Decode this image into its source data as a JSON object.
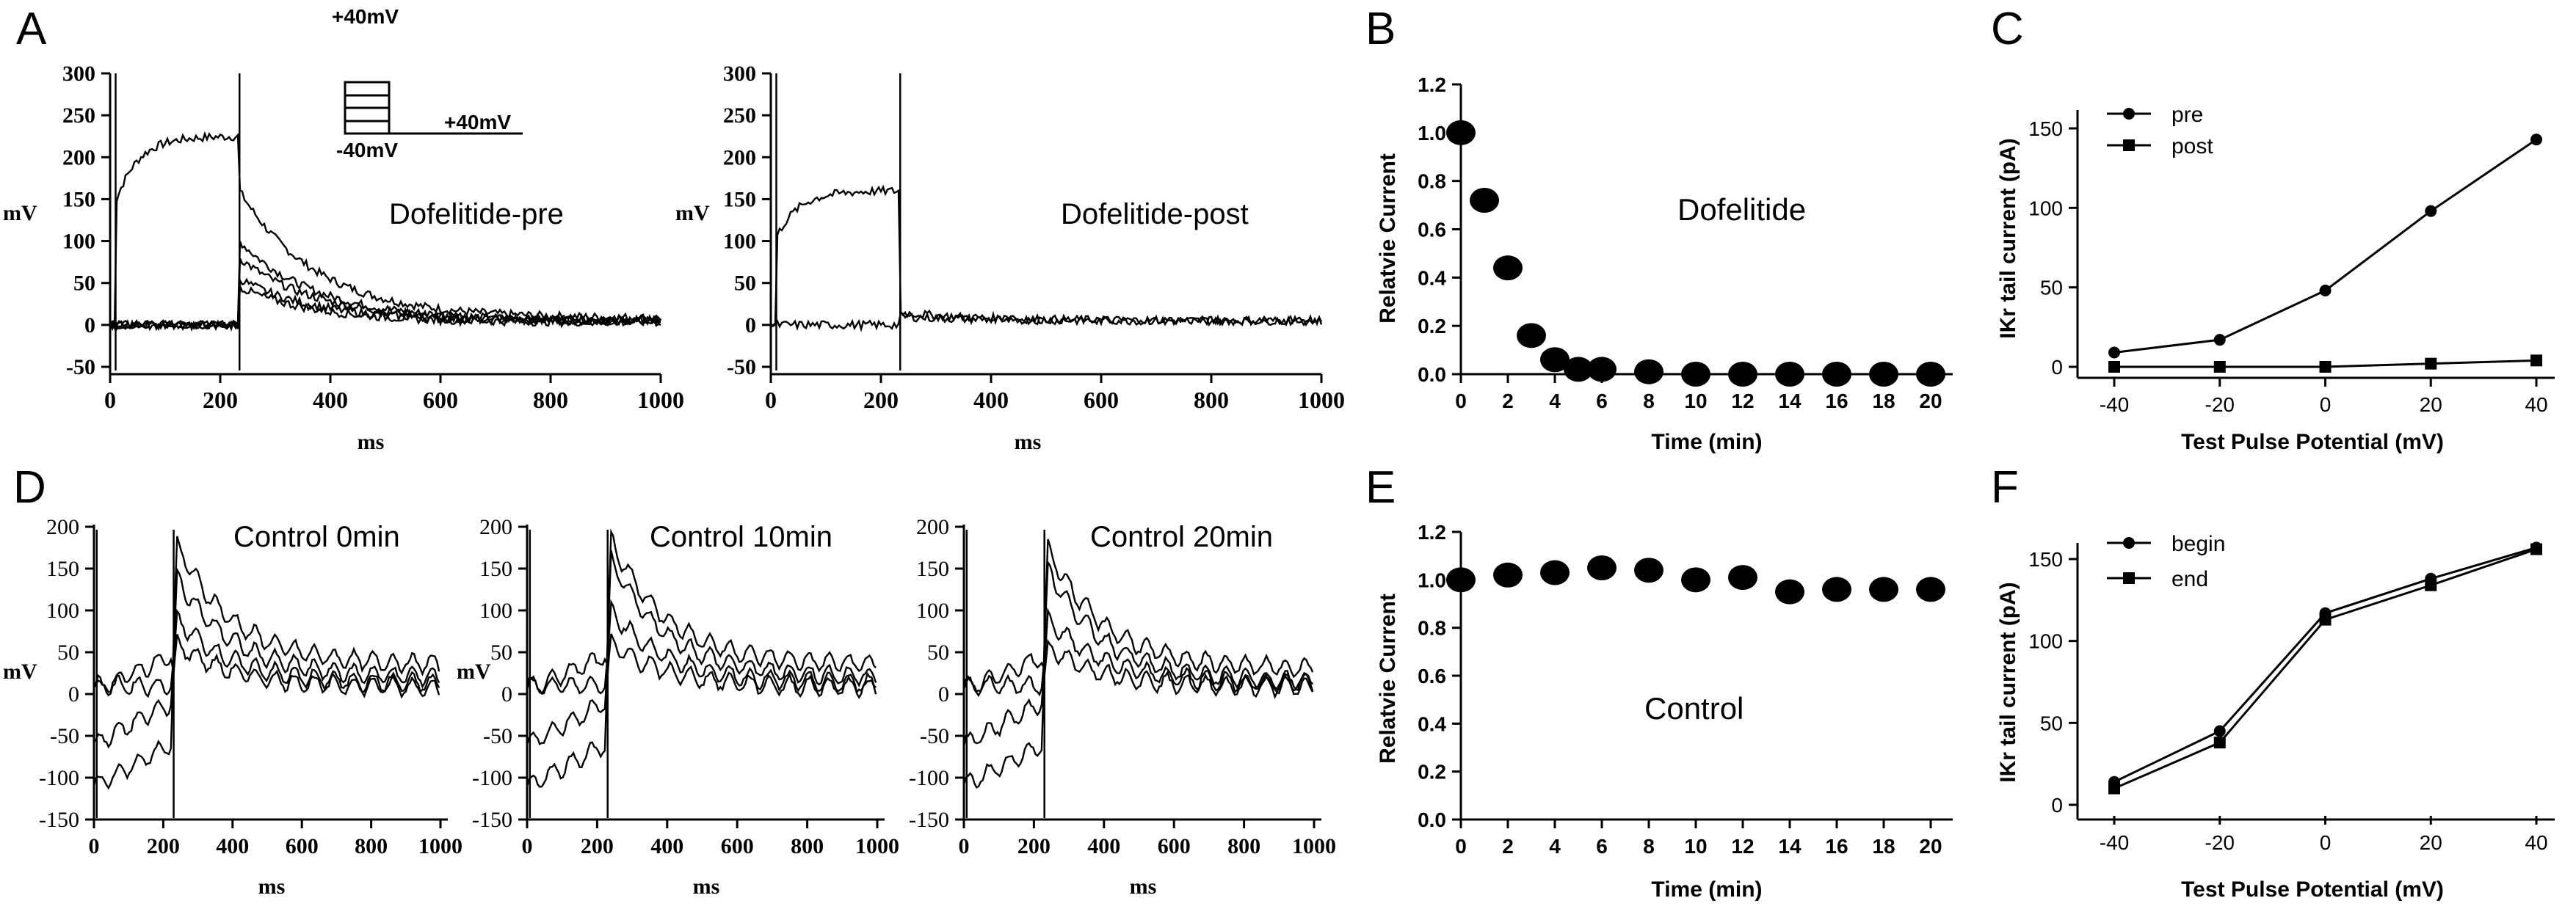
{
  "panel_letters": [
    "A",
    "B",
    "C",
    "D",
    "E",
    "F"
  ],
  "chart_data": [
    {
      "panel": "A",
      "type": "line",
      "subplots": [
        {
          "title": "Dofelitide-pre",
          "xlabel": "ms",
          "ylabel": "mV",
          "xlim": [
            0,
            1000
          ],
          "ylim": [
            -50,
            300
          ],
          "xticks": [
            0,
            200,
            400,
            600,
            800,
            1000
          ],
          "yticks": [
            -50,
            0,
            50,
            100,
            150,
            200,
            250,
            300
          ],
          "protocol_inset": {
            "top_label": "+40mV",
            "bottom_label": "-40mV",
            "right_label": "+40mV"
          },
          "series": [
            {
              "step_peak": 225,
              "tail_peak": 160,
              "tail_end": 8
            },
            {
              "step_peak": 0,
              "tail_peak": 100,
              "tail_end": 5
            },
            {
              "step_peak": 0,
              "tail_peak": 80,
              "tail_end": 5
            },
            {
              "step_peak": 0,
              "tail_peak": 55,
              "tail_end": 4
            },
            {
              "step_peak": 0,
              "tail_peak": 45,
              "tail_end": 3
            }
          ]
        },
        {
          "title": "Dofelitide-post",
          "xlabel": "ms",
          "ylabel": "mV",
          "xlim": [
            0,
            1000
          ],
          "ylim": [
            -50,
            300
          ],
          "xticks": [
            0,
            200,
            400,
            600,
            800,
            1000
          ],
          "yticks": [
            -50,
            0,
            50,
            100,
            150,
            200,
            250,
            300
          ],
          "series": [
            {
              "step_peak": 160,
              "tail_peak": 15,
              "tail_end": 5
            },
            {
              "step_peak": 0,
              "tail_peak": 10,
              "tail_end": 5
            }
          ]
        }
      ]
    },
    {
      "panel": "B",
      "type": "scatter",
      "title": "Dofelitide",
      "xlabel": "Time (min)",
      "ylabel": "Relatvie Current",
      "xlim": [
        0,
        20
      ],
      "ylim": [
        0,
        1.2
      ],
      "xticks": [
        0,
        2,
        4,
        6,
        8,
        10,
        12,
        14,
        16,
        18,
        20
      ],
      "yticks": [
        "0.0",
        "0.2",
        "0.4",
        "0.6",
        "0.8",
        "1.0",
        "1.2"
      ],
      "x": [
        0,
        1,
        2,
        3,
        4,
        5,
        6,
        8,
        10,
        12,
        14,
        16,
        18,
        20
      ],
      "y": [
        1.0,
        0.72,
        0.44,
        0.16,
        0.06,
        0.02,
        0.02,
        0.01,
        0.0,
        0.0,
        0.0,
        0.0,
        0.0,
        0.0
      ]
    },
    {
      "panel": "C",
      "type": "line",
      "xlabel": "Test Pulse Potential (mV)",
      "ylabel": "IKr tail current (pA)",
      "xlim": [
        -40,
        40
      ],
      "ylim": [
        0,
        150
      ],
      "xticks": [
        -40,
        -20,
        0,
        20,
        40
      ],
      "yticks": [
        0,
        50,
        100,
        150
      ],
      "legend": "top-left",
      "categories": [
        -40,
        -20,
        0,
        20,
        40
      ],
      "series": [
        {
          "name": "pre",
          "marker": "circle",
          "values": [
            9,
            17,
            48,
            98,
            143
          ]
        },
        {
          "name": "post",
          "marker": "square",
          "values": [
            0,
            0,
            0,
            2,
            4
          ]
        }
      ]
    },
    {
      "panel": "D",
      "type": "line",
      "subplots": [
        {
          "title": "Control 0min",
          "xlabel": "ms",
          "ylabel": "mV",
          "xlim": [
            0,
            1000
          ],
          "ylim": [
            -150,
            200
          ],
          "xticks": [
            0,
            200,
            400,
            600,
            800,
            1000
          ],
          "yticks": [
            -150,
            -100,
            -50,
            0,
            50,
            100,
            150,
            200
          ],
          "tail_peaks": [
            180,
            140,
            90,
            60
          ],
          "tail_end": 35
        },
        {
          "title": "Control 10min",
          "xlabel": "ms",
          "ylabel": "mV",
          "xlim": [
            0,
            1000
          ],
          "ylim": [
            -150,
            200
          ],
          "xticks": [
            0,
            200,
            400,
            600,
            800,
            1000
          ],
          "yticks": [
            -150,
            -100,
            -50,
            0,
            50,
            100,
            150,
            200
          ],
          "tail_peaks": [
            185,
            160,
            100,
            60
          ],
          "tail_end": 35
        },
        {
          "title": "Control 20min",
          "xlabel": "ms",
          "ylabel": "mV",
          "xlim": [
            0,
            1000
          ],
          "ylim": [
            -150,
            200
          ],
          "xticks": [
            0,
            200,
            400,
            600,
            800,
            1000
          ],
          "yticks": [
            -150,
            -100,
            -50,
            0,
            50,
            100,
            150,
            200
          ],
          "tail_peaks": [
            175,
            150,
            90,
            55
          ],
          "tail_end": 30
        }
      ]
    },
    {
      "panel": "E",
      "type": "scatter",
      "title": "Control",
      "xlabel": "Time (min)",
      "ylabel": "Relatvie Current",
      "xlim": [
        0,
        20
      ],
      "ylim": [
        0,
        1.2
      ],
      "xticks": [
        0,
        2,
        4,
        6,
        8,
        10,
        12,
        14,
        16,
        18,
        20
      ],
      "yticks": [
        "0.0",
        "0.2",
        "0.4",
        "0.6",
        "0.8",
        "1.0",
        "1.2"
      ],
      "x": [
        0,
        2,
        4,
        6,
        8,
        10,
        12,
        14,
        16,
        18,
        20
      ],
      "y": [
        1.0,
        1.02,
        1.03,
        1.05,
        1.04,
        1.0,
        1.01,
        0.95,
        0.96,
        0.96,
        0.96
      ]
    },
    {
      "panel": "F",
      "type": "line",
      "xlabel": "Test Pulse Potential (mV)",
      "ylabel": "IKr tail current (pA)",
      "xlim": [
        -40,
        40
      ],
      "ylim": [
        0,
        150
      ],
      "xticks": [
        -40,
        -20,
        0,
        20,
        40
      ],
      "yticks": [
        0,
        50,
        100,
        150
      ],
      "legend": "top-left",
      "categories": [
        -40,
        -20,
        0,
        20,
        40
      ],
      "series": [
        {
          "name": "begin",
          "marker": "circle",
          "values": [
            14,
            45,
            117,
            138,
            157
          ]
        },
        {
          "name": "end",
          "marker": "square",
          "values": [
            10,
            38,
            113,
            134,
            156
          ]
        }
      ]
    }
  ]
}
